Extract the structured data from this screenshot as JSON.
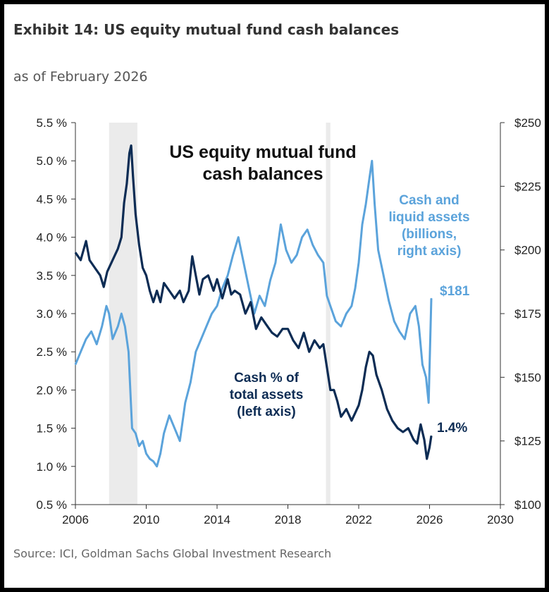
{
  "header": {
    "title": "Exhibit 14: US equity mutual fund cash balances",
    "subtitle": "as of February 2026"
  },
  "footer": {
    "source": "Source: ICI, Goldman Sachs Global Investment Research"
  },
  "colors": {
    "cash_pct_series": "#0d2c54",
    "cash_assets_series": "#5ba3db",
    "recession_shade": "#ebebeb",
    "axis": "#333333"
  },
  "chart_data": {
    "type": "line",
    "title": "US equity mutual fund cash balances",
    "xlabel": "",
    "ylabel": "",
    "xlim": [
      2006,
      2030
    ],
    "x_ticks": [
      2006,
      2010,
      2014,
      2018,
      2022,
      2026,
      2030
    ],
    "x_tick_labels": [
      "2006",
      "2010",
      "2014",
      "2018",
      "2022",
      "2026",
      "2030"
    ],
    "y_left": {
      "lim": [
        0.5,
        5.5
      ],
      "ticks": [
        0.5,
        1.0,
        1.5,
        2.0,
        2.5,
        3.0,
        3.5,
        4.0,
        4.5,
        5.0,
        5.5
      ],
      "tick_labels": [
        "0.5 %",
        "1.0 %",
        "1.5 %",
        "2.0 %",
        "2.5 %",
        "3.0 %",
        "3.5 %",
        "4.0 %",
        "4.5 %",
        "5.0 %",
        "5.5 %"
      ]
    },
    "y_right": {
      "lim": [
        100,
        250
      ],
      "ticks": [
        100,
        125,
        150,
        175,
        200,
        225,
        250
      ],
      "tick_labels": [
        "$100",
        "$125",
        "$150",
        "$175",
        "$200",
        "$225",
        "$250"
      ]
    },
    "recession_bands": [
      {
        "start": 2007.9,
        "end": 2009.5
      },
      {
        "start": 2020.15,
        "end": 2020.4
      }
    ],
    "grid": false,
    "legend": "none (inline annotations)",
    "series": [
      {
        "name": "Cash % of total assets (left axis)",
        "label_lines": [
          "Cash % of",
          "total assets",
          "(left axis)"
        ],
        "axis": "left",
        "end_label": "1.4%",
        "points": [
          [
            2006.0,
            3.8
          ],
          [
            2006.3,
            3.7
          ],
          [
            2006.6,
            3.95
          ],
          [
            2006.8,
            3.7
          ],
          [
            2007.1,
            3.6
          ],
          [
            2007.4,
            3.5
          ],
          [
            2007.6,
            3.35
          ],
          [
            2007.8,
            3.55
          ],
          [
            2008.1,
            3.7
          ],
          [
            2008.4,
            3.85
          ],
          [
            2008.6,
            4.0
          ],
          [
            2008.75,
            4.45
          ],
          [
            2008.9,
            4.7
          ],
          [
            2009.05,
            5.1
          ],
          [
            2009.15,
            5.2
          ],
          [
            2009.25,
            4.8
          ],
          [
            2009.4,
            4.3
          ],
          [
            2009.6,
            3.9
          ],
          [
            2009.8,
            3.6
          ],
          [
            2010.0,
            3.5
          ],
          [
            2010.2,
            3.3
          ],
          [
            2010.4,
            3.15
          ],
          [
            2010.6,
            3.3
          ],
          [
            2010.8,
            3.15
          ],
          [
            2011.0,
            3.4
          ],
          [
            2011.3,
            3.3
          ],
          [
            2011.6,
            3.2
          ],
          [
            2011.9,
            3.3
          ],
          [
            2012.1,
            3.15
          ],
          [
            2012.4,
            3.3
          ],
          [
            2012.6,
            3.75
          ],
          [
            2012.8,
            3.5
          ],
          [
            2013.0,
            3.25
          ],
          [
            2013.2,
            3.45
          ],
          [
            2013.5,
            3.5
          ],
          [
            2013.8,
            3.3
          ],
          [
            2014.0,
            3.45
          ],
          [
            2014.3,
            3.2
          ],
          [
            2014.6,
            3.45
          ],
          [
            2014.8,
            3.25
          ],
          [
            2015.0,
            3.3
          ],
          [
            2015.3,
            3.25
          ],
          [
            2015.6,
            3.0
          ],
          [
            2015.9,
            3.15
          ],
          [
            2016.2,
            2.8
          ],
          [
            2016.5,
            2.95
          ],
          [
            2016.8,
            2.85
          ],
          [
            2017.1,
            2.75
          ],
          [
            2017.4,
            2.7
          ],
          [
            2017.7,
            2.8
          ],
          [
            2018.0,
            2.8
          ],
          [
            2018.3,
            2.65
          ],
          [
            2018.6,
            2.55
          ],
          [
            2018.9,
            2.75
          ],
          [
            2019.2,
            2.5
          ],
          [
            2019.5,
            2.65
          ],
          [
            2019.8,
            2.55
          ],
          [
            2020.0,
            2.6
          ],
          [
            2020.2,
            2.3
          ],
          [
            2020.4,
            2.0
          ],
          [
            2020.6,
            2.0
          ],
          [
            2020.8,
            1.85
          ],
          [
            2021.0,
            1.65
          ],
          [
            2021.3,
            1.75
          ],
          [
            2021.6,
            1.6
          ],
          [
            2021.8,
            1.7
          ],
          [
            2022.0,
            1.8
          ],
          [
            2022.2,
            2.0
          ],
          [
            2022.4,
            2.3
          ],
          [
            2022.6,
            2.5
          ],
          [
            2022.8,
            2.45
          ],
          [
            2023.0,
            2.2
          ],
          [
            2023.3,
            2.0
          ],
          [
            2023.6,
            1.75
          ],
          [
            2023.9,
            1.6
          ],
          [
            2024.2,
            1.5
          ],
          [
            2024.5,
            1.45
          ],
          [
            2024.8,
            1.5
          ],
          [
            2025.1,
            1.35
          ],
          [
            2025.3,
            1.3
          ],
          [
            2025.5,
            1.55
          ],
          [
            2025.7,
            1.35
          ],
          [
            2025.85,
            1.1
          ],
          [
            2026.0,
            1.25
          ],
          [
            2026.1,
            1.4
          ]
        ]
      },
      {
        "name": "Cash and liquid assets (billions, right axis)",
        "label_lines": [
          "Cash and",
          "liquid assets",
          "(billions,",
          "right axis)"
        ],
        "axis": "right",
        "end_label": "$181",
        "points": [
          [
            2006.0,
            155
          ],
          [
            2006.3,
            160
          ],
          [
            2006.6,
            165
          ],
          [
            2006.9,
            168
          ],
          [
            2007.2,
            163
          ],
          [
            2007.5,
            170
          ],
          [
            2007.75,
            178
          ],
          [
            2007.9,
            175
          ],
          [
            2008.1,
            165
          ],
          [
            2008.4,
            170
          ],
          [
            2008.6,
            175
          ],
          [
            2008.8,
            170
          ],
          [
            2009.0,
            160
          ],
          [
            2009.2,
            130
          ],
          [
            2009.4,
            128
          ],
          [
            2009.6,
            123
          ],
          [
            2009.8,
            125
          ],
          [
            2010.0,
            120
          ],
          [
            2010.2,
            118
          ],
          [
            2010.4,
            117
          ],
          [
            2010.6,
            115
          ],
          [
            2010.8,
            120
          ],
          [
            2011.0,
            128
          ],
          [
            2011.3,
            135
          ],
          [
            2011.6,
            130
          ],
          [
            2011.9,
            125
          ],
          [
            2012.2,
            140
          ],
          [
            2012.5,
            148
          ],
          [
            2012.8,
            160
          ],
          [
            2013.1,
            165
          ],
          [
            2013.4,
            170
          ],
          [
            2013.7,
            175
          ],
          [
            2014.0,
            178
          ],
          [
            2014.3,
            185
          ],
          [
            2014.6,
            190
          ],
          [
            2014.9,
            198
          ],
          [
            2015.2,
            205
          ],
          [
            2015.5,
            195
          ],
          [
            2015.8,
            185
          ],
          [
            2016.1,
            175
          ],
          [
            2016.4,
            182
          ],
          [
            2016.7,
            178
          ],
          [
            2017.0,
            188
          ],
          [
            2017.3,
            195
          ],
          [
            2017.6,
            210
          ],
          [
            2017.9,
            200
          ],
          [
            2018.2,
            195
          ],
          [
            2018.5,
            198
          ],
          [
            2018.8,
            205
          ],
          [
            2019.1,
            208
          ],
          [
            2019.4,
            202
          ],
          [
            2019.7,
            198
          ],
          [
            2020.0,
            195
          ],
          [
            2020.2,
            182
          ],
          [
            2020.4,
            178
          ],
          [
            2020.7,
            172
          ],
          [
            2021.0,
            170
          ],
          [
            2021.3,
            175
          ],
          [
            2021.6,
            178
          ],
          [
            2021.8,
            185
          ],
          [
            2022.0,
            195
          ],
          [
            2022.2,
            210
          ],
          [
            2022.4,
            218
          ],
          [
            2022.6,
            228
          ],
          [
            2022.75,
            235
          ],
          [
            2022.9,
            218
          ],
          [
            2023.1,
            200
          ],
          [
            2023.4,
            190
          ],
          [
            2023.7,
            180
          ],
          [
            2024.0,
            172
          ],
          [
            2024.3,
            168
          ],
          [
            2024.6,
            165
          ],
          [
            2024.9,
            175
          ],
          [
            2025.2,
            178
          ],
          [
            2025.4,
            170
          ],
          [
            2025.6,
            155
          ],
          [
            2025.8,
            150
          ],
          [
            2025.95,
            140
          ],
          [
            2026.1,
            181
          ]
        ]
      }
    ],
    "annotations": {
      "chart_title_lines": [
        "US equity mutual fund",
        "cash balances"
      ]
    }
  }
}
